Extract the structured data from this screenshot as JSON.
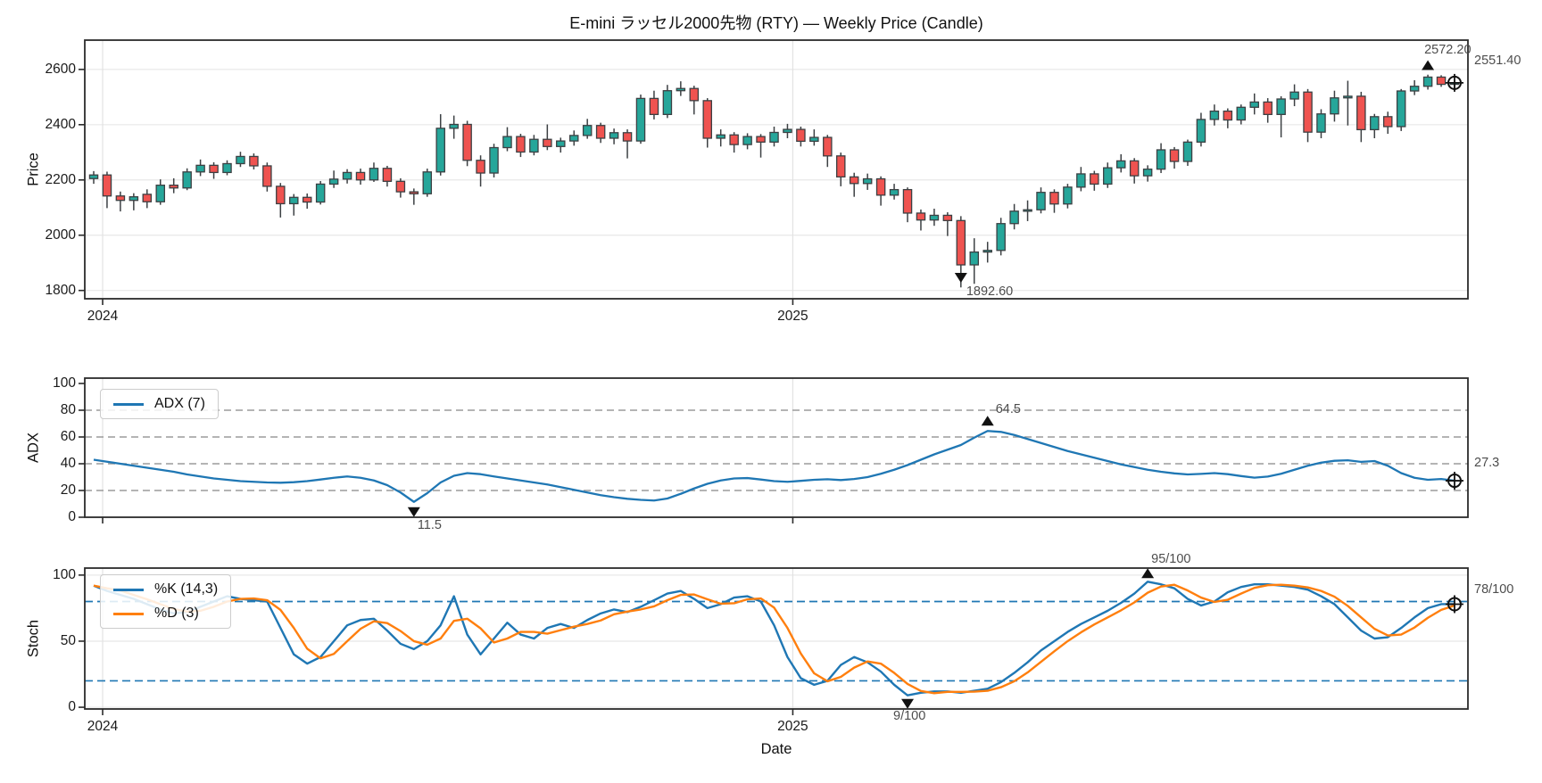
{
  "title": "E-mini ラッセル2000先物 (RTY) — Weekly Price (Candle)",
  "x_axis": {
    "label": "Date",
    "ticks": [
      {
        "label": "2024",
        "index": 0.67
      },
      {
        "label": "2025",
        "index": 52.4
      }
    ]
  },
  "colors": {
    "up": "#26a69a",
    "down": "#ef5350",
    "candle_edge": "#3c4043",
    "adx_line": "#1f77b4",
    "stoch_k": "#1f77b4",
    "stoch_d": "#ff7f0e",
    "grid": "#e8e8e8",
    "year_grid": "#e2e2e2",
    "dashed_grid": "#9b9b9b",
    "stoch_guide": "#1f77b4",
    "marker": "#111111",
    "annotation": "#4d4d4d",
    "axis": "#2b2b2b"
  },
  "chart_data": [
    {
      "type": "candlestick",
      "name": "Weekly Price (Candle)",
      "ylabel": "Price",
      "yticks": [
        1800,
        2000,
        2200,
        2400,
        2600
      ],
      "ylim": [
        1770,
        2706
      ],
      "annotations": {
        "min_close_label": "1892.60",
        "max_close_label": "2572.20",
        "last_label": "2551.40"
      },
      "ohlc": [
        [
          2205,
          2232,
          2186,
          2218
        ],
        [
          2218,
          2230,
          2098,
          2142
        ],
        [
          2142,
          2158,
          2086,
          2126
        ],
        [
          2126,
          2152,
          2090,
          2139
        ],
        [
          2148,
          2166,
          2098,
          2121
        ],
        [
          2121,
          2202,
          2110,
          2181
        ],
        [
          2181,
          2206,
          2152,
          2171
        ],
        [
          2171,
          2242,
          2163,
          2229
        ],
        [
          2229,
          2274,
          2214,
          2253
        ],
        [
          2253,
          2264,
          2204,
          2227
        ],
        [
          2227,
          2271,
          2217,
          2259
        ],
        [
          2259,
          2302,
          2247,
          2285
        ],
        [
          2285,
          2296,
          2238,
          2251
        ],
        [
          2251,
          2263,
          2158,
          2177
        ],
        [
          2177,
          2189,
          2064,
          2114
        ],
        [
          2114,
          2149,
          2071,
          2137
        ],
        [
          2137,
          2151,
          2096,
          2120
        ],
        [
          2120,
          2196,
          2111,
          2185
        ],
        [
          2185,
          2234,
          2171,
          2203
        ],
        [
          2203,
          2239,
          2187,
          2227
        ],
        [
          2227,
          2241,
          2183,
          2200
        ],
        [
          2200,
          2263,
          2193,
          2242
        ],
        [
          2242,
          2251,
          2176,
          2195
        ],
        [
          2195,
          2206,
          2136,
          2157
        ],
        [
          2157,
          2169,
          2110,
          2150
        ],
        [
          2150,
          2241,
          2139,
          2229
        ],
        [
          2229,
          2438,
          2216,
          2387
        ],
        [
          2387,
          2433,
          2349,
          2401
        ],
        [
          2401,
          2414,
          2250,
          2271
        ],
        [
          2271,
          2289,
          2176,
          2225
        ],
        [
          2225,
          2331,
          2209,
          2317
        ],
        [
          2317,
          2391,
          2304,
          2357
        ],
        [
          2357,
          2367,
          2283,
          2301
        ],
        [
          2301,
          2363,
          2289,
          2347
        ],
        [
          2347,
          2401,
          2308,
          2321
        ],
        [
          2321,
          2353,
          2299,
          2341
        ],
        [
          2341,
          2379,
          2324,
          2361
        ],
        [
          2361,
          2421,
          2349,
          2397
        ],
        [
          2397,
          2407,
          2334,
          2351
        ],
        [
          2351,
          2386,
          2329,
          2371
        ],
        [
          2371,
          2383,
          2278,
          2341
        ],
        [
          2341,
          2509,
          2331,
          2495
        ],
        [
          2495,
          2523,
          2419,
          2437
        ],
        [
          2437,
          2544,
          2424,
          2523
        ],
        [
          2523,
          2557,
          2504,
          2531
        ],
        [
          2531,
          2541,
          2437,
          2487
        ],
        [
          2487,
          2496,
          2317,
          2351
        ],
        [
          2351,
          2383,
          2321,
          2363
        ],
        [
          2363,
          2373,
          2299,
          2328
        ],
        [
          2328,
          2369,
          2311,
          2357
        ],
        [
          2357,
          2366,
          2281,
          2337
        ],
        [
          2337,
          2393,
          2321,
          2372
        ],
        [
          2372,
          2403,
          2351,
          2383
        ],
        [
          2383,
          2393,
          2321,
          2340
        ],
        [
          2340,
          2383,
          2324,
          2354
        ],
        [
          2354,
          2363,
          2247,
          2287
        ],
        [
          2287,
          2299,
          2177,
          2211
        ],
        [
          2211,
          2226,
          2139,
          2187
        ],
        [
          2187,
          2223,
          2164,
          2204
        ],
        [
          2204,
          2213,
          2107,
          2145
        ],
        [
          2145,
          2186,
          2129,
          2165
        ],
        [
          2165,
          2173,
          2047,
          2080
        ],
        [
          2080,
          2093,
          2017,
          2055
        ],
        [
          2055,
          2096,
          2034,
          2072
        ],
        [
          2072,
          2083,
          1997,
          2053
        ],
        [
          2053,
          2069,
          1811,
          1892.6
        ],
        [
          1892.6,
          1989,
          1824,
          1939
        ],
        [
          1939,
          1976,
          1901,
          1945
        ],
        [
          1945,
          2063,
          1927,
          2042
        ],
        [
          2042,
          2113,
          2021,
          2087
        ],
        [
          2087,
          2126,
          2051,
          2092
        ],
        [
          2092,
          2173,
          2079,
          2155
        ],
        [
          2155,
          2166,
          2081,
          2113
        ],
        [
          2113,
          2186,
          2097,
          2174
        ],
        [
          2174,
          2247,
          2159,
          2222
        ],
        [
          2222,
          2233,
          2161,
          2185
        ],
        [
          2185,
          2263,
          2171,
          2244
        ],
        [
          2244,
          2293,
          2227,
          2269
        ],
        [
          2269,
          2279,
          2187,
          2215
        ],
        [
          2215,
          2253,
          2194,
          2239
        ],
        [
          2239,
          2333,
          2225,
          2309
        ],
        [
          2309,
          2319,
          2241,
          2267
        ],
        [
          2267,
          2346,
          2251,
          2337
        ],
        [
          2337,
          2443,
          2321,
          2419
        ],
        [
          2419,
          2473,
          2397,
          2449
        ],
        [
          2449,
          2459,
          2387,
          2417
        ],
        [
          2417,
          2473,
          2401,
          2463
        ],
        [
          2463,
          2513,
          2437,
          2482
        ],
        [
          2482,
          2496,
          2407,
          2437
        ],
        [
          2437,
          2503,
          2354,
          2493
        ],
        [
          2493,
          2546,
          2467,
          2518
        ],
        [
          2518,
          2529,
          2337,
          2373
        ],
        [
          2373,
          2456,
          2351,
          2439
        ],
        [
          2439,
          2523,
          2411,
          2497
        ],
        [
          2497,
          2559,
          2397,
          2503
        ],
        [
          2503,
          2519,
          2337,
          2382
        ],
        [
          2382,
          2439,
          2351,
          2429
        ],
        [
          2429,
          2447,
          2367,
          2393
        ],
        [
          2393,
          2529,
          2377,
          2522
        ],
        [
          2522,
          2561,
          2507,
          2539
        ],
        [
          2539,
          2581,
          2527,
          2572.2
        ],
        [
          2572.2,
          2579,
          2537,
          2546
        ],
        [
          2546,
          2563,
          2531,
          2551.4
        ]
      ]
    },
    {
      "type": "line",
      "ylabel": "ADX",
      "yticks": [
        0,
        20,
        40,
        60,
        80,
        100
      ],
      "ylim": [
        0,
        104
      ],
      "dashed_gridlines": [
        20,
        40,
        60,
        80
      ],
      "annotations": {
        "min_label": "11.5",
        "max_label": "64.5",
        "last_label": "27.3"
      },
      "series": [
        {
          "name": "ADX (7)",
          "values": [
            43,
            41.5,
            40,
            38.5,
            37,
            35.5,
            34,
            32,
            30.5,
            29,
            28,
            27,
            26.5,
            26,
            25.8,
            26.2,
            27,
            28.2,
            29.5,
            30.5,
            29.5,
            27.5,
            24,
            18.5,
            11.5,
            18,
            26,
            31,
            33,
            32.2,
            30.5,
            29,
            27.5,
            26,
            24.5,
            22.5,
            20.5,
            18.5,
            16.5,
            15,
            13.8,
            13,
            12.5,
            14,
            17.5,
            21.5,
            25,
            27.5,
            29,
            29.3,
            28.2,
            27,
            26.5,
            27.2,
            28,
            28.4,
            27.8,
            28.6,
            30,
            32.5,
            35.5,
            39,
            43,
            47,
            50.5,
            54,
            59.5,
            64.5,
            63.8,
            61.5,
            58.5,
            55.5,
            52.5,
            49.5,
            47,
            44.5,
            42,
            39.5,
            37.5,
            35.5,
            34,
            32.8,
            32,
            32.4,
            33,
            32.2,
            30.8,
            29.6,
            30.4,
            32.5,
            35.5,
            38.5,
            40.8,
            42.2,
            42.6,
            41.4,
            42,
            38.5,
            33,
            29.5,
            28,
            28.6,
            27.3
          ]
        }
      ]
    },
    {
      "type": "line",
      "ylabel": "Stoch",
      "yticks": [
        0,
        50,
        100
      ],
      "ylim": [
        -1.3,
        105.3
      ],
      "guide_lines": [
        20,
        80
      ],
      "annotations": {
        "min_label": "9/100",
        "max_label": "95/100",
        "last_label": "78/100"
      },
      "series": [
        {
          "name": "%K (14,3)",
          "values": [
            92,
            88,
            85,
            82,
            78,
            74,
            71,
            72,
            76,
            80,
            84,
            82,
            81,
            80,
            60,
            40,
            33,
            38,
            50,
            62,
            66,
            67,
            58,
            48,
            44,
            50,
            62,
            84,
            55,
            40,
            52,
            64,
            55,
            52,
            60,
            63,
            60,
            66,
            71,
            74,
            72,
            76,
            81,
            86,
            88,
            82,
            75,
            78,
            83,
            84,
            80,
            62,
            38,
            22,
            17,
            20,
            32,
            38,
            34,
            27,
            17,
            9,
            11,
            12,
            12,
            11,
            12.5,
            14,
            19,
            26,
            34,
            43,
            50,
            57,
            63,
            68,
            73,
            79,
            86,
            95,
            93,
            90,
            82,
            77,
            80,
            87,
            91,
            93,
            93,
            92,
            91,
            89,
            84,
            78,
            68,
            58,
            52,
            53,
            60,
            68,
            75,
            78,
            78
          ]
        },
        {
          "name": "%D (3)",
          "derived_from": "SMA(3) of %K"
        }
      ]
    }
  ]
}
